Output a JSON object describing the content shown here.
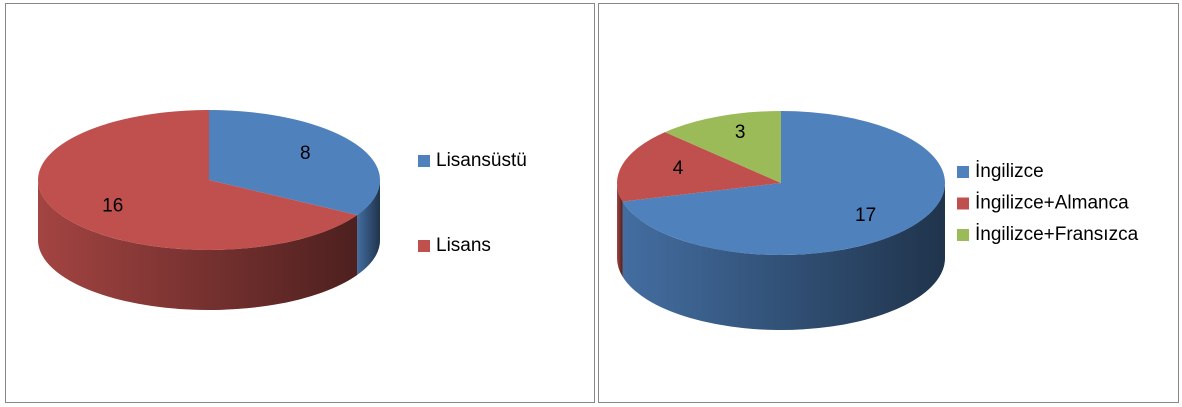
{
  "chart_data": [
    {
      "type": "pie",
      "categories": [
        "Lisansüstü",
        "Lisans"
      ],
      "values": [
        8,
        16
      ],
      "colors": [
        "#4f81bd",
        "#c0504d"
      ],
      "legend": "right"
    },
    {
      "type": "pie",
      "categories": [
        "İngilizce",
        "İngilizce+Almanca",
        "İngilizce+Fransızca"
      ],
      "values": [
        17,
        4,
        3
      ],
      "colors": [
        "#4f81bd",
        "#c0504d",
        "#9bbb59"
      ],
      "legend": "right"
    }
  ]
}
